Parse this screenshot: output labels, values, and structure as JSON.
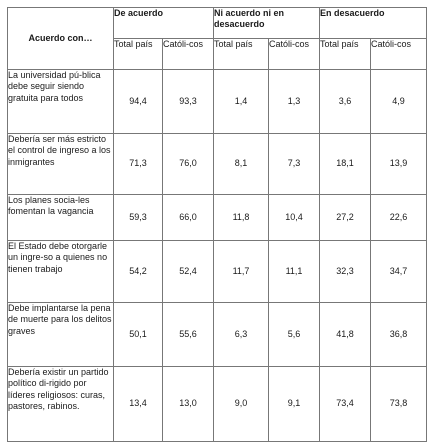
{
  "table": {
    "corner_label": "Acuerdo con…",
    "groups": [
      "De acuerdo",
      "Ni acuerdo ni en desacuerdo",
      "En desacuerdo"
    ],
    "subheaders": [
      "Total país",
      "Católi-cos",
      "Total país",
      "Católi-cos",
      "Total país",
      "Católi-cos"
    ],
    "rows": [
      {
        "label": "La universidad pú-blica debe seguir siendo gratuita para todos",
        "values": [
          "94,4",
          "93,3",
          "1,4",
          "1,3",
          "3,6",
          "4,9"
        ]
      },
      {
        "label": "Debería ser más estricto el control de ingreso a los inmigrantes",
        "values": [
          "71,3",
          "76,0",
          "8,1",
          "7,3",
          "18,1",
          "13,9"
        ]
      },
      {
        "label": "Los planes socia-les fomentan la vagancia",
        "values": [
          "59,3",
          "66,0",
          "11,8",
          "10,4",
          "27,2",
          "22,6"
        ]
      },
      {
        "label": "El Estado debe otorgarle un ingre-so a quienes no tienen trabajo",
        "values": [
          "54,2",
          "52,4",
          "11,7",
          "11,1",
          "32,3",
          "34,7"
        ]
      },
      {
        "label": "Debe implantarse la pena de muerte para los delitos graves",
        "values": [
          "50,1",
          "55,6",
          "6,3",
          "5,6",
          "41,8",
          "36,8"
        ]
      },
      {
        "label": "Debería existir un partido político di-rigido por líderes religiosos: curas, pastores, rabinos.",
        "values": [
          "13,4",
          "13,0",
          "9,0",
          "9,1",
          "73,4",
          "73,8"
        ]
      }
    ]
  }
}
